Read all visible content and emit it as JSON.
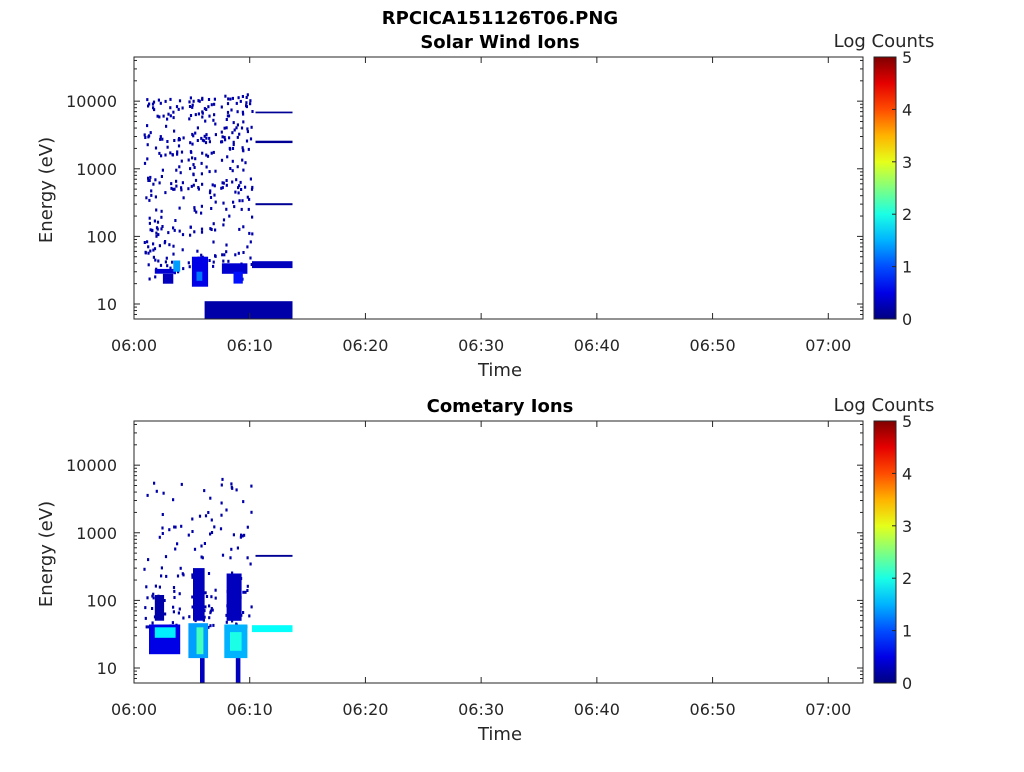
{
  "figure_title": "RPCICA151126T06.PNG",
  "chart_data": [
    {
      "type": "heatmap",
      "title": "Solar Wind Ions",
      "xlabel": "Time",
      "ylabel": "Energy (eV)",
      "x_ticks": [
        "06:00",
        "06:10",
        "06:20",
        "06:30",
        "06:40",
        "06:50",
        "07:00"
      ],
      "y_ticks": [
        "10",
        "100",
        "1000",
        "10000"
      ],
      "xlim": [
        "06:00",
        "07:03"
      ],
      "ylim": [
        6,
        45000
      ],
      "yscale": "log",
      "colorbar": {
        "label": "Log Counts",
        "ticks": [
          "0",
          "1",
          "2",
          "3",
          "4",
          "5"
        ],
        "range": [
          0,
          5
        ],
        "colormap": "jet"
      },
      "cells": [
        {
          "t0": 6.1,
          "t1": 13.7,
          "e0": 6,
          "e1": 11,
          "v": 0.2
        },
        {
          "t0": 10.2,
          "t1": 13.7,
          "e0": 34,
          "e1": 43,
          "v": 0.3
        },
        {
          "t0": 1.8,
          "t1": 3.6,
          "e0": 28,
          "e1": 33,
          "v": 0.4
        },
        {
          "t0": 3.4,
          "t1": 4.0,
          "e0": 30,
          "e1": 44,
          "v": 1.4
        },
        {
          "t0": 2.5,
          "t1": 3.4,
          "e0": 20,
          "e1": 28,
          "v": 0.3
        },
        {
          "t0": 5.0,
          "t1": 6.4,
          "e0": 18,
          "e1": 50,
          "v": 0.5
        },
        {
          "t0": 5.4,
          "t1": 5.9,
          "e0": 22,
          "e1": 30,
          "v": 1.2
        },
        {
          "t0": 7.6,
          "t1": 9.8,
          "e0": 28,
          "e1": 40,
          "v": 0.4
        },
        {
          "t0": 8.6,
          "t1": 9.4,
          "e0": 20,
          "e1": 30,
          "v": 0.7
        },
        {
          "t0": 10.5,
          "t1": 13.7,
          "e0": 290,
          "e1": 310,
          "v": 0.1
        },
        {
          "t0": 10.5,
          "t1": 13.7,
          "e0": 2400,
          "e1": 2600,
          "v": 0.1
        },
        {
          "t0": 10.5,
          "t1": 13.7,
          "e0": 6600,
          "e1": 7000,
          "v": 0.1
        }
      ]
    },
    {
      "type": "heatmap",
      "title": "Cometary Ions",
      "xlabel": "Time",
      "ylabel": "Energy (eV)",
      "x_ticks": [
        "06:00",
        "06:10",
        "06:20",
        "06:30",
        "06:40",
        "06:50",
        "07:00"
      ],
      "y_ticks": [
        "10",
        "100",
        "1000",
        "10000"
      ],
      "xlim": [
        "06:00",
        "07:03"
      ],
      "ylim": [
        6,
        45000
      ],
      "yscale": "log",
      "colorbar": {
        "label": "Log Counts",
        "ticks": [
          "0",
          "1",
          "2",
          "3",
          "4",
          "5"
        ],
        "range": [
          0,
          5
        ],
        "colormap": "jet"
      },
      "cells": [
        {
          "t0": 1.3,
          "t1": 4.0,
          "e0": 16,
          "e1": 44,
          "v": 0.5
        },
        {
          "t0": 1.8,
          "t1": 3.6,
          "e0": 28,
          "e1": 40,
          "v": 1.8
        },
        {
          "t0": 4.7,
          "t1": 6.4,
          "e0": 14,
          "e1": 46,
          "v": 1.4
        },
        {
          "t0": 5.4,
          "t1": 6.0,
          "e0": 16,
          "e1": 40,
          "v": 2.2
        },
        {
          "t0": 7.8,
          "t1": 9.8,
          "e0": 14,
          "e1": 44,
          "v": 1.5
        },
        {
          "t0": 8.3,
          "t1": 9.3,
          "e0": 18,
          "e1": 34,
          "v": 2.0
        },
        {
          "t0": 5.1,
          "t1": 6.1,
          "e0": 50,
          "e1": 300,
          "v": 0.3
        },
        {
          "t0": 8.0,
          "t1": 9.3,
          "e0": 50,
          "e1": 250,
          "v": 0.3
        },
        {
          "t0": 1.8,
          "t1": 2.6,
          "e0": 50,
          "e1": 120,
          "v": 0.2
        },
        {
          "t0": 5.7,
          "t1": 6.1,
          "e0": 6,
          "e1": 14,
          "v": 0.3
        },
        {
          "t0": 8.8,
          "t1": 9.2,
          "e0": 6,
          "e1": 14,
          "v": 0.3
        },
        {
          "t0": 10.2,
          "t1": 13.7,
          "e0": 34,
          "e1": 43,
          "v": 1.9
        },
        {
          "t0": 10.5,
          "t1": 13.7,
          "e0": 440,
          "e1": 470,
          "v": 0.1
        }
      ]
    }
  ]
}
